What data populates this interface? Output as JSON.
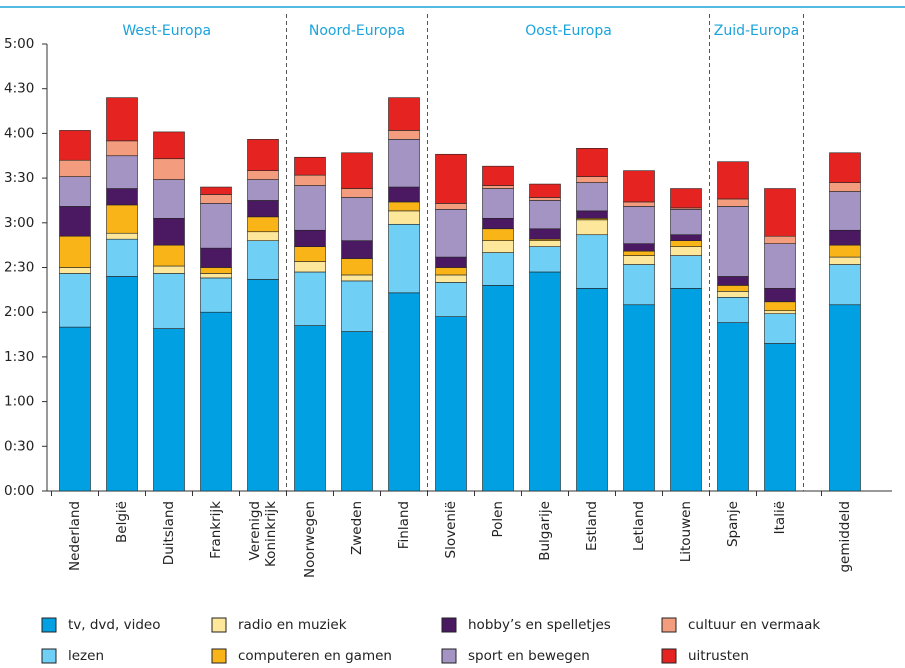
{
  "chart_data": {
    "type": "stacked-bar",
    "regions": [
      "West-Europa",
      "Noord-Europa",
      "Oost-Europa",
      "Zuid-Europa"
    ],
    "categories": [
      "Nederland",
      "België",
      "Duitsland",
      "Frankrijk",
      "Verenigd Koninkrijk",
      "Noorwegen",
      "Zweden",
      "Finland",
      "Slovenië",
      "Polen",
      "Bulgarije",
      "Estland",
      "Letland",
      "Litouwen",
      "Spanje",
      "Italië",
      "gemiddeld"
    ],
    "series": [
      {
        "name": "tv, dvd, video",
        "color": "#00a0e3",
        "values": [
          110,
          144,
          109,
          120,
          142,
          111,
          107,
          133,
          117,
          138,
          147,
          136,
          125,
          136,
          113,
          99,
          125
        ]
      },
      {
        "name": "lezen",
        "color": "#6fcff4",
        "values": [
          36,
          25,
          37,
          23,
          26,
          36,
          34,
          46,
          23,
          22,
          17,
          36,
          27,
          22,
          17,
          20,
          27
        ]
      },
      {
        "name": "radio en muziek",
        "color": "#fde79a",
        "values": [
          4,
          4,
          5,
          3,
          6,
          7,
          4,
          9,
          5,
          8,
          4,
          10,
          6,
          6,
          4,
          2,
          5
        ]
      },
      {
        "name": "computeren en gamen",
        "color": "#f9b418",
        "values": [
          21,
          19,
          14,
          4,
          10,
          10,
          11,
          6,
          5,
          8,
          1,
          1,
          3,
          4,
          4,
          6,
          8
        ]
      },
      {
        "name": "hobby’s en spelletjes",
        "color": "#4b1862",
        "values": [
          20,
          11,
          18,
          13,
          11,
          11,
          12,
          10,
          7,
          7,
          7,
          5,
          5,
          4,
          6,
          9,
          10
        ]
      },
      {
        "name": "sport en bewegen",
        "color": "#a394c4",
        "values": [
          20,
          22,
          26,
          30,
          14,
          30,
          29,
          32,
          32,
          20,
          19,
          19,
          25,
          17,
          47,
          30,
          26
        ]
      },
      {
        "name": "cultuur en vermaak",
        "color": "#f39c7e",
        "values": [
          11,
          10,
          14,
          6,
          6,
          7,
          6,
          6,
          4,
          2,
          2,
          4,
          3,
          1,
          5,
          5,
          6
        ]
      },
      {
        "name": "uitrusten",
        "color": "#e52421",
        "values": [
          20,
          29,
          18,
          5,
          21,
          12,
          24,
          22,
          33,
          13,
          9,
          19,
          21,
          13,
          25,
          32,
          20
        ]
      }
    ],
    "ylim": [
      0,
      300
    ],
    "yticks": [
      {
        "value": 0,
        "label": "0:00"
      },
      {
        "value": 30,
        "label": "0:30"
      },
      {
        "value": 60,
        "label": "1:00"
      },
      {
        "value": 90,
        "label": "1:30"
      },
      {
        "value": 120,
        "label": "2:00"
      },
      {
        "value": 150,
        "label": "2:30"
      },
      {
        "value": 180,
        "label": "3:00"
      },
      {
        "value": 210,
        "label": "3:30"
      },
      {
        "value": 240,
        "label": "4:00"
      },
      {
        "value": 270,
        "label": "4:30"
      },
      {
        "value": 300,
        "label": "5:00"
      }
    ],
    "grid": false
  }
}
